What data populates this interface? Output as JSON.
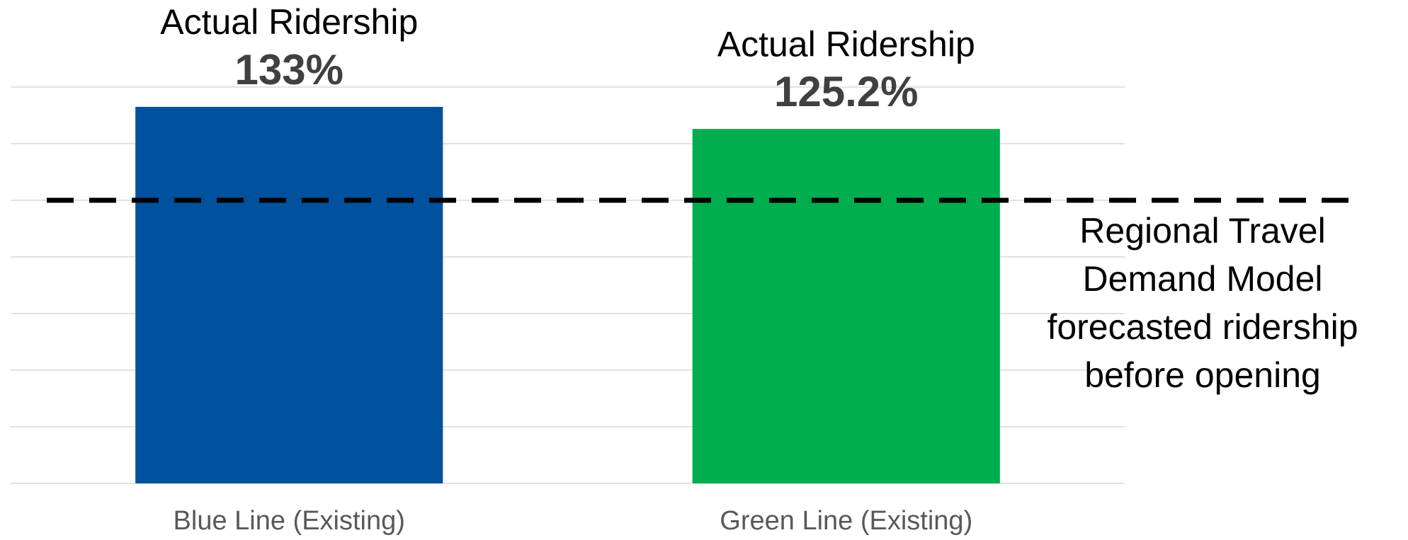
{
  "chart_data": {
    "type": "bar",
    "categories": [
      "Blue Line (Existing)",
      "Green Line (Existing)"
    ],
    "series": [
      {
        "colors": [
          "#00529f",
          "#00ad4f"
        ],
        "values": [
          133,
          125.2
        ],
        "value_labels": [
          "133%",
          "125.2%"
        ],
        "annotations": [
          "Actual Ridership",
          "Actual Ridership"
        ]
      }
    ],
    "reference_line": {
      "value": 100,
      "color": "#000000",
      "label_lines": [
        "Regional Travel",
        "Demand Model",
        "forecasted ridership",
        "before opening"
      ]
    },
    "ylim": [
      0,
      140
    ],
    "yticks": [
      0,
      20,
      40,
      60,
      80,
      100,
      120,
      140
    ],
    "grid": true
  }
}
